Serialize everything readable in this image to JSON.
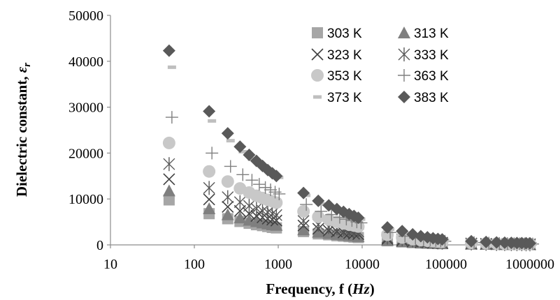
{
  "chart_data": {
    "type": "scatter",
    "x_scale": "log",
    "xlabel": "Frequency, f (Hz)",
    "ylabel": "Dielectric constant, εr",
    "xlim": [
      10,
      1000000
    ],
    "ylim": [
      0,
      50000
    ],
    "x_ticks": [
      "10",
      "100",
      "1000",
      "10000",
      "100000",
      "1000000"
    ],
    "y_ticks": [
      "0",
      "10000",
      "20000",
      "30000",
      "40000",
      "50000"
    ],
    "grid": false,
    "legend_position": "top-right",
    "x": [
      50,
      150,
      250,
      350,
      450,
      550,
      650,
      750,
      850,
      950,
      2000,
      3000,
      4000,
      5000,
      6000,
      7000,
      8000,
      9000,
      20000,
      30000,
      40000,
      50000,
      60000,
      70000,
      80000,
      90000,
      200000,
      300000,
      400000,
      500000,
      600000,
      700000,
      800000,
      900000,
      1000000
    ],
    "series": [
      {
        "name": "303 K",
        "marker": "square",
        "color": "#a6a6a6",
        "values": [
          9800,
          6800,
          5700,
          5100,
          4700,
          4400,
          4200,
          4000,
          3800,
          3700,
          2900,
          2400,
          2200,
          2000,
          1900,
          1800,
          1700,
          1600,
          900,
          650,
          500,
          420,
          360,
          320,
          290,
          270,
          180,
          140,
          120,
          105,
          95,
          88,
          82,
          78,
          75
        ]
      },
      {
        "name": "313 K",
        "marker": "triangle",
        "color": "#7f7f7f",
        "values": [
          11800,
          7900,
          6600,
          5900,
          5400,
          5100,
          4800,
          4600,
          4400,
          4300,
          3300,
          2800,
          2500,
          2300,
          2150,
          2050,
          1950,
          1850,
          1000,
          750,
          580,
          480,
          420,
          370,
          340,
          310,
          200,
          160,
          135,
          120,
          110,
          100,
          95,
          90,
          85
        ]
      },
      {
        "name": "323 K",
        "marker": "x",
        "color": "#404040",
        "values": [
          14300,
          9900,
          8300,
          7400,
          6800,
          6300,
          6000,
          5700,
          5500,
          5300,
          4200,
          3500,
          3100,
          2900,
          2700,
          2550,
          2450,
          2350,
          1300,
          950,
          750,
          620,
          540,
          480,
          440,
          400,
          260,
          200,
          170,
          150,
          135,
          125,
          115,
          110,
          105
        ]
      },
      {
        "name": "333 K",
        "marker": "asterisk",
        "color": "#595959",
        "values": [
          17600,
          12400,
          10400,
          9300,
          8500,
          7900,
          7400,
          7100,
          6800,
          6500,
          5200,
          4400,
          3900,
          3600,
          3400,
          3200,
          3050,
          2900,
          1600,
          1200,
          950,
          780,
          680,
          600,
          550,
          500,
          320,
          250,
          210,
          185,
          170,
          155,
          145,
          140,
          130
        ]
      },
      {
        "name": "353 K",
        "marker": "circle",
        "color": "#c8c8c8",
        "values": [
          22200,
          16000,
          13800,
          12300,
          11400,
          10700,
          10200,
          9800,
          9500,
          9200,
          7300,
          6100,
          5500,
          5000,
          4700,
          4400,
          4200,
          4000,
          2200,
          1600,
          1250,
          1050,
          900,
          800,
          720,
          660,
          420,
          330,
          280,
          245,
          220,
          205,
          190,
          180,
          170
        ]
      },
      {
        "name": "363 K",
        "marker": "plus",
        "color": "#7f7f7f",
        "values": [
          27800,
          20000,
          17100,
          15300,
          14100,
          13200,
          12500,
          12000,
          11500,
          11100,
          8800,
          7300,
          6600,
          6000,
          5600,
          5300,
          5000,
          4800,
          2700,
          1900,
          1500,
          1250,
          1080,
          950,
          860,
          790,
          500,
          390,
          330,
          290,
          260,
          240,
          225,
          212,
          200
        ]
      },
      {
        "name": "373 K",
        "marker": "dash",
        "color": "#bfbfbf",
        "values": [
          38700,
          27000,
          22700,
          20300,
          18700,
          17500,
          16500,
          15800,
          15200,
          14700,
          10800,
          8900,
          7900,
          7200,
          6700,
          6300,
          5900,
          5600,
          3400,
          2500,
          1950,
          1600,
          1380,
          1220,
          1100,
          1000,
          640,
          500,
          420,
          370,
          335,
          310,
          290,
          275,
          260
        ]
      },
      {
        "name": "383 K",
        "marker": "diamond",
        "color": "#595959",
        "values": [
          42300,
          29100,
          24300,
          21400,
          19600,
          18300,
          17200,
          16300,
          15600,
          15000,
          11300,
          9600,
          8600,
          7800,
          7200,
          6700,
          6300,
          5900,
          3800,
          3000,
          2300,
          1900,
          1650,
          1450,
          1300,
          1200,
          800,
          630,
          540,
          480,
          430,
          400,
          375,
          355,
          340
        ]
      }
    ]
  }
}
